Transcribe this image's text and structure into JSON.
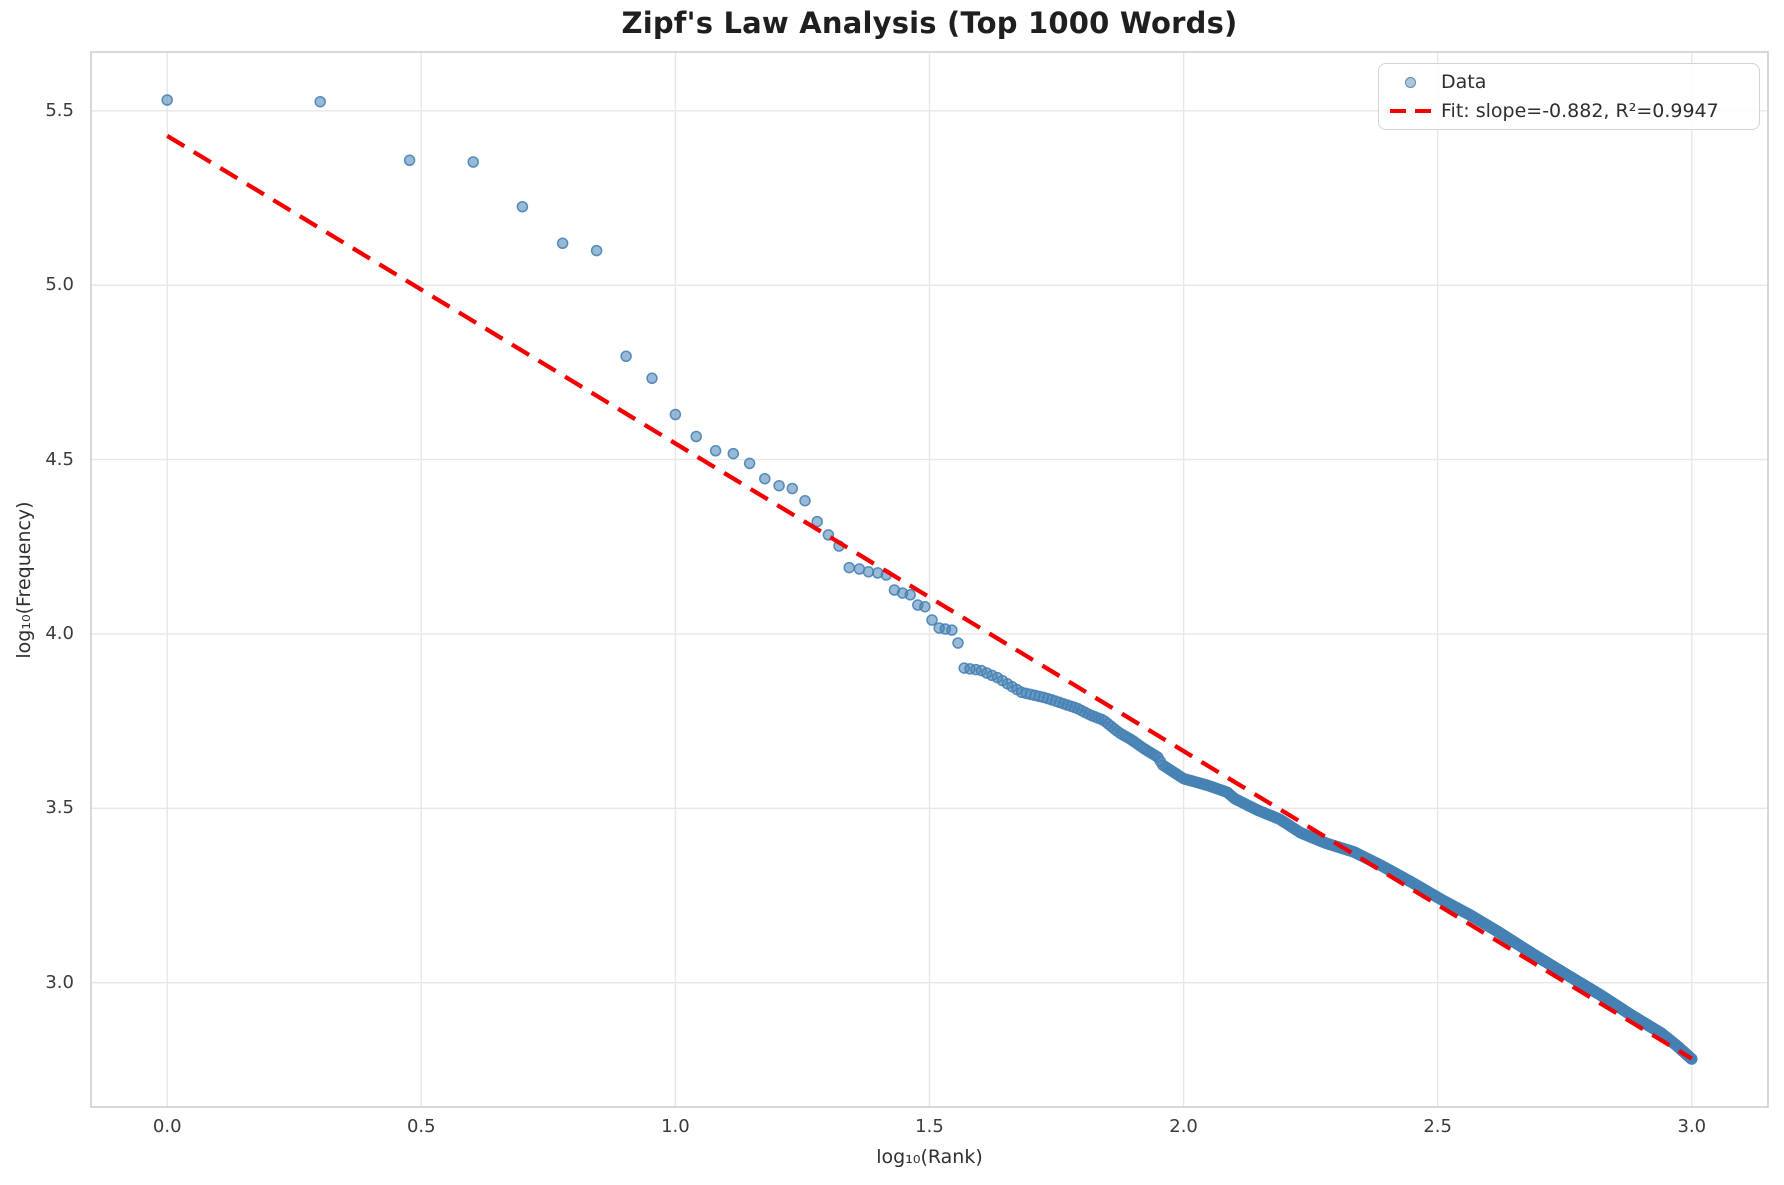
{
  "figure": {
    "title": "Zipf's Law Analysis (Top 1000 Words)",
    "xlabel": "log₁₀(Rank)",
    "ylabel": "log₁₀(Frequency)"
  },
  "legend": {
    "data_label": "Data",
    "fit_label": "Fit: slope=-0.882, R²=0.9947"
  },
  "chart_data": {
    "type": "scatter",
    "title": "Zipf's Law Analysis (Top 1000 Words)",
    "xlabel": "log₁₀(Rank)",
    "ylabel": "log₁₀(Frequency)",
    "grid": true,
    "legend_position": "upper right",
    "xlim": [
      -0.15,
      3.15
    ],
    "ylim": [
      2.6435,
      5.6685
    ],
    "x_ticks": [
      0.0,
      0.5,
      1.0,
      1.5,
      2.0,
      2.5,
      3.0
    ],
    "x_tick_labels": [
      "0.0",
      "0.5",
      "1.0",
      "1.5",
      "2.0",
      "2.5",
      "3.0"
    ],
    "y_ticks": [
      3.0,
      3.5,
      4.0,
      4.5,
      5.0,
      5.5
    ],
    "y_tick_labels": [
      "3.0",
      "3.5",
      "4.0",
      "4.5",
      "5.0",
      "5.5"
    ],
    "colors": {
      "scatter": "#4682b4",
      "scatter_alpha": 0.55,
      "fit_line": "#f40000",
      "grid": "#e7e7e7",
      "spine": "#cbcbcb"
    },
    "series": [
      {
        "name": "Data",
        "type": "scatter",
        "n_points": 1000,
        "x_unit": "log10(rank)",
        "y_unit": "log10(frequency)",
        "points_head_log10": [
          [
            0.0,
            5.531
          ],
          [
            0.301,
            5.526
          ],
          [
            0.477,
            5.358
          ],
          [
            0.602,
            5.353
          ],
          [
            0.699,
            5.225
          ],
          [
            0.778,
            5.12
          ],
          [
            0.845,
            5.099
          ],
          [
            0.903,
            4.796
          ],
          [
            0.954,
            4.733
          ],
          [
            1.0,
            4.629
          ],
          [
            1.041,
            4.566
          ],
          [
            1.079,
            4.525
          ],
          [
            1.114,
            4.517
          ],
          [
            1.146,
            4.489
          ],
          [
            1.176,
            4.445
          ],
          [
            1.204,
            4.425
          ],
          [
            1.23,
            4.417
          ],
          [
            1.255,
            4.382
          ],
          [
            1.279,
            4.322
          ],
          [
            1.301,
            4.284
          ],
          [
            1.322,
            4.252
          ],
          [
            1.342,
            4.19
          ],
          [
            1.362,
            4.186
          ],
          [
            1.38,
            4.178
          ],
          [
            1.398,
            4.175
          ],
          [
            1.415,
            4.169
          ],
          [
            1.431,
            4.126
          ],
          [
            1.447,
            4.117
          ],
          [
            1.462,
            4.112
          ],
          [
            1.477,
            4.083
          ],
          [
            1.491,
            4.078
          ],
          [
            1.505,
            4.04
          ],
          [
            1.519,
            4.017
          ],
          [
            1.531,
            4.014
          ],
          [
            1.544,
            4.011
          ],
          [
            1.556,
            3.974
          ]
        ],
        "tail_rank_range": [
          37,
          1000
        ],
        "tail_anchors_log10": [
          [
            1.568,
            3.902
          ],
          [
            1.6,
            3.896
          ],
          [
            1.636,
            3.873
          ],
          [
            1.68,
            3.833
          ],
          [
            1.73,
            3.816
          ],
          [
            1.79,
            3.787
          ],
          [
            1.817,
            3.767
          ],
          [
            1.842,
            3.753
          ],
          [
            1.872,
            3.718
          ],
          [
            1.899,
            3.695
          ],
          [
            1.921,
            3.672
          ],
          [
            1.949,
            3.647
          ],
          [
            1.959,
            3.624
          ],
          [
            2.0,
            3.585
          ],
          [
            2.047,
            3.566
          ],
          [
            2.086,
            3.546
          ],
          [
            2.1,
            3.528
          ],
          [
            2.145,
            3.495
          ],
          [
            2.19,
            3.468
          ],
          [
            2.23,
            3.43
          ],
          [
            2.28,
            3.4
          ],
          [
            2.335,
            3.375
          ],
          [
            2.39,
            3.335
          ],
          [
            2.45,
            3.287
          ],
          [
            2.51,
            3.236
          ],
          [
            2.565,
            3.193
          ],
          [
            2.62,
            3.145
          ],
          [
            2.69,
            3.08
          ],
          [
            2.755,
            3.022
          ],
          [
            2.82,
            2.965
          ],
          [
            2.88,
            2.908
          ],
          [
            2.94,
            2.855
          ],
          [
            2.97,
            2.82
          ],
          [
            3.0,
            2.781
          ]
        ]
      },
      {
        "name": "Fit",
        "type": "line",
        "style": "dashed",
        "slope": -0.882,
        "intercept": 5.428,
        "r_squared": 0.9947,
        "x_start": 0.0,
        "x_end": 3.0
      }
    ]
  }
}
